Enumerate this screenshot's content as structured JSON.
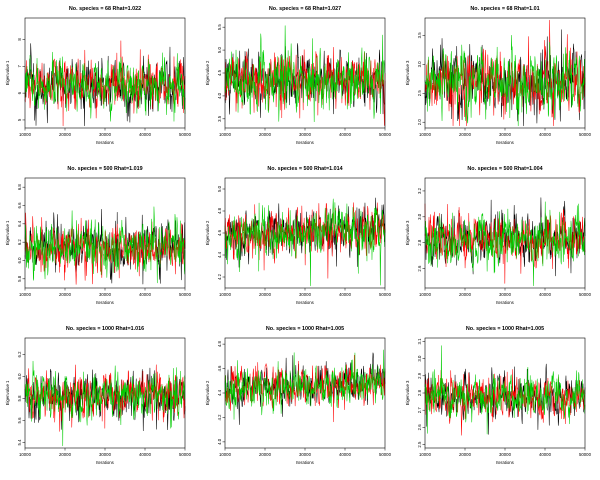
{
  "chart_data": [
    {
      "type": "line",
      "title": "No. species = 68 Rhat=1.022",
      "xlabel": "Iterations",
      "ylabel": "Eigenvalue 1",
      "xlim": [
        10000,
        50000
      ],
      "ylim": [
        4.7,
        8.8
      ],
      "xticks": [
        10000,
        20000,
        30000,
        40000,
        50000
      ],
      "yticks": [
        5,
        6,
        7,
        8
      ],
      "center": 6.3,
      "spread": 0.45,
      "trend": 0,
      "series": [
        {
          "color": "#000000",
          "seed": 101
        },
        {
          "color": "#ff0000",
          "seed": 102
        },
        {
          "color": "#00cc00",
          "seed": 103
        }
      ]
    },
    {
      "type": "line",
      "title": "No. species = 68 Rhat=1.027",
      "xlabel": "Iterations",
      "ylabel": "Eigenvalue 2",
      "xlim": [
        10000,
        50000
      ],
      "ylim": [
        3.3,
        5.7
      ],
      "xticks": [
        10000,
        20000,
        30000,
        40000,
        50000
      ],
      "yticks": [
        3.5,
        4.0,
        4.5,
        5.0,
        5.5
      ],
      "center": 4.35,
      "spread": 0.3,
      "trend": 0,
      "series": [
        {
          "color": "#000000",
          "seed": 201
        },
        {
          "color": "#ff0000",
          "seed": 202
        },
        {
          "color": "#00cc00",
          "seed": 203
        }
      ]
    },
    {
      "type": "line",
      "title": "No. species = 68 Rhat=1.01",
      "xlabel": "Iterations",
      "ylabel": "Eigenvalue 3",
      "xlim": [
        10000,
        50000
      ],
      "ylim": [
        1.9,
        3.8
      ],
      "xticks": [
        10000,
        20000,
        30000,
        40000,
        50000
      ],
      "yticks": [
        2.0,
        2.5,
        3.0,
        3.5
      ],
      "center": 2.7,
      "spread": 0.25,
      "trend": 0,
      "series": [
        {
          "color": "#000000",
          "seed": 301
        },
        {
          "color": "#ff0000",
          "seed": 302
        },
        {
          "color": "#00cc00",
          "seed": 303
        }
      ]
    },
    {
      "type": "line",
      "title": "No. species = 500 Rhat=1.019",
      "xlabel": "Iterations",
      "ylabel": "Eigenvalue 1",
      "xlim": [
        10000,
        50000
      ],
      "ylim": [
        5.7,
        6.9
      ],
      "xticks": [
        10000,
        20000,
        30000,
        40000,
        50000
      ],
      "yticks": [
        5.8,
        6.0,
        6.2,
        6.4,
        6.6,
        6.8
      ],
      "center": 6.15,
      "spread": 0.13,
      "trend": 0,
      "series": [
        {
          "color": "#000000",
          "seed": 401
        },
        {
          "color": "#ff0000",
          "seed": 402
        },
        {
          "color": "#00cc00",
          "seed": 403
        }
      ]
    },
    {
      "type": "line",
      "title": "No. species = 500 Rhat=1.014",
      "xlabel": "Iterations",
      "ylabel": "Eigenvalue 2",
      "xlim": [
        10000,
        50000
      ],
      "ylim": [
        4.1,
        5.1
      ],
      "xticks": [
        10000,
        20000,
        30000,
        40000,
        50000
      ],
      "yticks": [
        4.2,
        4.4,
        4.6,
        4.8,
        5.0
      ],
      "center": 4.6,
      "spread": 0.1,
      "trend": 0.08,
      "series": [
        {
          "color": "#000000",
          "seed": 501
        },
        {
          "color": "#ff0000",
          "seed": 502
        },
        {
          "color": "#00cc00",
          "seed": 503
        }
      ]
    },
    {
      "type": "line",
      "title": "No. species = 500 Rhat=1.004",
      "xlabel": "Iterations",
      "ylabel": "Eigenvalue 3",
      "xlim": [
        10000,
        50000
      ],
      "ylim": [
        2.45,
        3.3
      ],
      "xticks": [
        10000,
        20000,
        30000,
        40000,
        50000
      ],
      "yticks": [
        2.6,
        2.8,
        3.0,
        3.2
      ],
      "center": 2.83,
      "spread": 0.09,
      "trend": 0,
      "series": [
        {
          "color": "#000000",
          "seed": 601
        },
        {
          "color": "#ff0000",
          "seed": 602
        },
        {
          "color": "#00cc00",
          "seed": 603
        }
      ]
    },
    {
      "type": "line",
      "title": "No. species = 1000 Rhat=1.016",
      "xlabel": "Iterations",
      "ylabel": "Eigenvalue 1",
      "xlim": [
        10000,
        50000
      ],
      "ylim": [
        5.35,
        6.35
      ],
      "xticks": [
        10000,
        20000,
        30000,
        40000,
        50000
      ],
      "yticks": [
        5.4,
        5.6,
        5.8,
        6.0,
        6.2
      ],
      "center": 5.82,
      "spread": 0.1,
      "trend": 0,
      "series": [
        {
          "color": "#000000",
          "seed": 701
        },
        {
          "color": "#ff0000",
          "seed": 702
        },
        {
          "color": "#00cc00",
          "seed": 703
        }
      ]
    },
    {
      "type": "line",
      "title": "No. species = 1000 Rhat=1.005",
      "xlabel": "Iterations",
      "ylabel": "Eigenvalue 2",
      "xlim": [
        10000,
        50000
      ],
      "ylim": [
        3.95,
        4.85
      ],
      "xticks": [
        10000,
        20000,
        30000,
        40000,
        50000
      ],
      "yticks": [
        4.0,
        4.2,
        4.4,
        4.6,
        4.8
      ],
      "center": 4.45,
      "spread": 0.08,
      "trend": 0.06,
      "series": [
        {
          "color": "#000000",
          "seed": 801
        },
        {
          "color": "#ff0000",
          "seed": 802
        },
        {
          "color": "#00cc00",
          "seed": 803
        }
      ]
    },
    {
      "type": "line",
      "title": "No. species = 1000 Rhat=1.005",
      "xlabel": "Iterations",
      "ylabel": "Eigenvalue 3",
      "xlim": [
        10000,
        50000
      ],
      "ylim": [
        2.48,
        3.12
      ],
      "xticks": [
        10000,
        20000,
        30000,
        40000,
        50000
      ],
      "yticks": [
        2.5,
        2.6,
        2.7,
        2.8,
        2.9,
        3.0,
        3.1
      ],
      "center": 2.78,
      "spread": 0.06,
      "trend": 0,
      "series": [
        {
          "color": "#000000",
          "seed": 901
        },
        {
          "color": "#ff0000",
          "seed": 902
        },
        {
          "color": "#00cc00",
          "seed": 903
        }
      ]
    }
  ]
}
